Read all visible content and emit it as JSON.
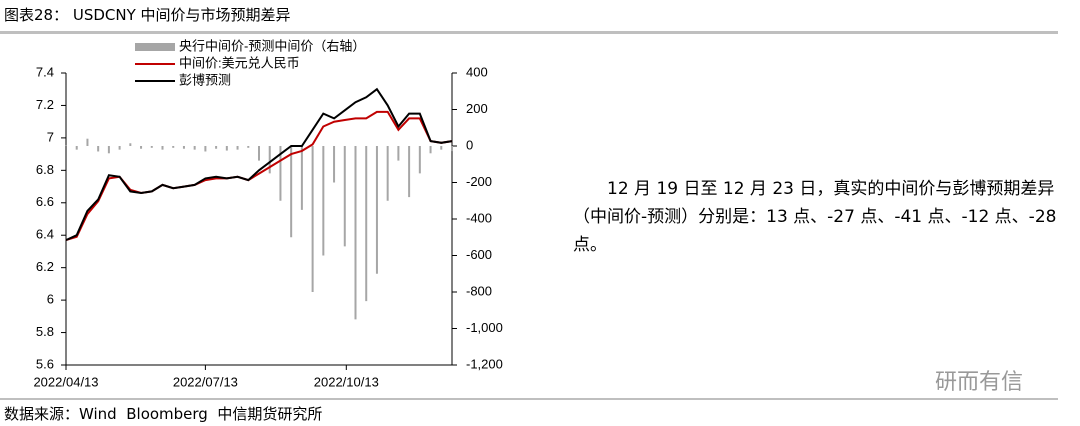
{
  "header": "图表28： USDCNY 中间价与市场预期差异",
  "chart_data": {
    "type": "line",
    "x": [
      "2022/04/13",
      "2022/04/20",
      "2022/04/27",
      "2022/05/04",
      "2022/05/11",
      "2022/05/18",
      "2022/05/25",
      "2022/06/01",
      "2022/06/08",
      "2022/06/15",
      "2022/06/22",
      "2022/06/29",
      "2022/07/06",
      "2022/07/13",
      "2022/07/20",
      "2022/07/27",
      "2022/08/03",
      "2022/08/10",
      "2022/08/17",
      "2022/08/24",
      "2022/08/31",
      "2022/09/07",
      "2022/09/14",
      "2022/09/21",
      "2022/09/28",
      "2022/10/05",
      "2022/10/12",
      "2022/10/19",
      "2022/10/26",
      "2022/11/02",
      "2022/11/09",
      "2022/11/16",
      "2022/11/23",
      "2022/11/30",
      "2022/12/07",
      "2022/12/14",
      "2022/12/21"
    ],
    "xlim": [
      "2022/04/13",
      "2022/12/21"
    ],
    "xticks": [
      "2022/04/13",
      "2022/07/13",
      "2022/10/13"
    ],
    "ylim": [
      5.6,
      7.4
    ],
    "yticks": [
      5.6,
      5.8,
      6,
      6.2,
      6.4,
      6.6,
      6.8,
      7,
      7.2,
      7.4
    ],
    "y2lim": [
      -1200,
      400
    ],
    "y2ticks": [
      {
        "value": -1200,
        "label": "-1,200"
      },
      {
        "value": -1000,
        "label": "-1,000"
      },
      -800,
      -600,
      -400,
      -200,
      0,
      200,
      400
    ],
    "legend": "top-left",
    "series": [
      {
        "name": "央行中间价-预测中间价（右轴）",
        "color": "#a6a6a6",
        "type": "bar",
        "axis": "y2",
        "values": [
          5,
          -20,
          40,
          -30,
          -40,
          -20,
          15,
          -15,
          -10,
          -20,
          -10,
          -15,
          -20,
          -30,
          -15,
          -25,
          -20,
          -10,
          -80,
          -150,
          -300,
          -500,
          -350,
          -800,
          -600,
          -200,
          -550,
          -950,
          -850,
          -700,
          -300,
          -80,
          -280,
          -150,
          -40,
          -20,
          -28
        ]
      },
      {
        "name": "中间价:美元兑人民币",
        "color": "#c00000",
        "type": "line",
        "values": [
          6.37,
          6.39,
          6.53,
          6.61,
          6.75,
          6.76,
          6.68,
          6.66,
          6.67,
          6.71,
          6.69,
          6.7,
          6.71,
          6.74,
          6.75,
          6.75,
          6.76,
          6.74,
          6.78,
          6.82,
          6.86,
          6.9,
          6.92,
          6.96,
          7.07,
          7.1,
          7.11,
          7.12,
          7.12,
          7.16,
          7.16,
          7.05,
          7.12,
          7.12,
          6.98,
          6.97,
          6.98
        ]
      },
      {
        "name": "彭博预测",
        "color": "#000000",
        "type": "line",
        "values": [
          6.37,
          6.4,
          6.55,
          6.62,
          6.77,
          6.76,
          6.67,
          6.66,
          6.67,
          6.71,
          6.69,
          6.7,
          6.71,
          6.75,
          6.76,
          6.75,
          6.76,
          6.74,
          6.8,
          6.85,
          6.9,
          6.95,
          6.95,
          7.05,
          7.15,
          7.12,
          7.17,
          7.22,
          7.25,
          7.3,
          7.2,
          7.07,
          7.15,
          7.15,
          6.98,
          6.97,
          6.98
        ]
      }
    ]
  },
  "paragraph": "12 月 19 日至 12 月 23 日，真实的中间价与彭博预期差异（中间价-预测）分别是：13 点、-27 点、-41 点、-12 点、-28 点。",
  "source": "数据来源：Wind  Bloomberg  中信期货研究所",
  "watermark": "研而有信"
}
